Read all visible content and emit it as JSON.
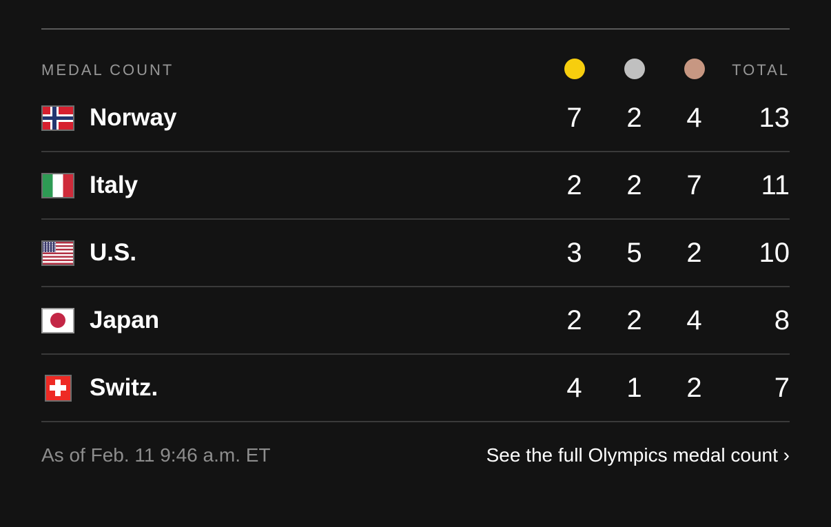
{
  "header": {
    "title": "MEDAL COUNT",
    "gold_icon": "gold-medal",
    "silver_icon": "silver-medal",
    "bronze_icon": "bronze-medal",
    "total_label": "TOTAL"
  },
  "colors": {
    "gold": "#f7ce0e",
    "silver": "#c0c0c0",
    "bronze": "#c79782"
  },
  "rows": [
    {
      "country": "Norway",
      "flag": "norway",
      "gold": "7",
      "silver": "2",
      "bronze": "4",
      "total": "13"
    },
    {
      "country": "Italy",
      "flag": "italy",
      "gold": "2",
      "silver": "2",
      "bronze": "7",
      "total": "11"
    },
    {
      "country": "U.S.",
      "flag": "us",
      "gold": "3",
      "silver": "5",
      "bronze": "2",
      "total": "10"
    },
    {
      "country": "Japan",
      "flag": "japan",
      "gold": "2",
      "silver": "2",
      "bronze": "4",
      "total": "8"
    },
    {
      "country": "Switz.",
      "flag": "swiss",
      "gold": "4",
      "silver": "1",
      "bronze": "2",
      "total": "7"
    }
  ],
  "footer": {
    "as_of": "As of Feb. 11 9:46 a.m. ET",
    "link": "See the full Olympics medal count ›"
  }
}
